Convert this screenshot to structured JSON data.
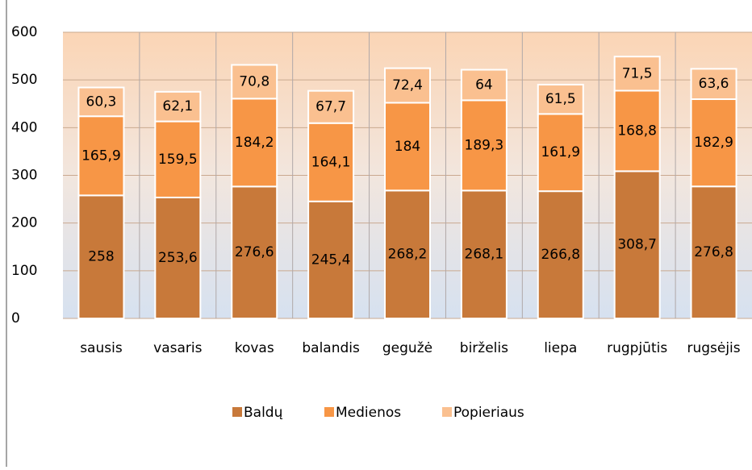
{
  "chart_data": {
    "type": "stacked_bar",
    "categories": [
      "sausis",
      "vasaris",
      "kovas",
      "balandis",
      "gegužė",
      "birželis",
      "liepa",
      "rugpjūtis",
      "rugsėjis"
    ],
    "series": [
      {
        "name": "Baldų",
        "color": "#c8793a",
        "values": [
          258,
          253.6,
          276.6,
          245.4,
          268.2,
          268.1,
          266.8,
          308.7,
          276.8
        ],
        "value_labels": [
          "258",
          "253,6",
          "276,6",
          "245,4",
          "268,2",
          "268,1",
          "266,8",
          "308,7",
          "276,8"
        ]
      },
      {
        "name": "Medienos",
        "color": "#f79646",
        "values": [
          165.9,
          159.5,
          184.2,
          164.1,
          184,
          189.3,
          161.9,
          168.8,
          182.9
        ],
        "value_labels": [
          "165,9",
          "159,5",
          "184,2",
          "164,1",
          "184",
          "189,3",
          "161,9",
          "168,8",
          "182,9"
        ]
      },
      {
        "name": "Popieriaus",
        "color": "#fac090",
        "values": [
          60.3,
          62.1,
          70.8,
          67.7,
          72.4,
          64,
          61.5,
          71.5,
          63.6
        ],
        "value_labels": [
          "60,3",
          "62,1",
          "70,8",
          "67,7",
          "72,4",
          "64",
          "61,5",
          "71,5",
          "63,6"
        ]
      }
    ],
    "ylim": [
      0,
      600
    ],
    "yticks": [
      0,
      100,
      200,
      300,
      400,
      500,
      600
    ],
    "grid": true,
    "legend": "bottom"
  }
}
